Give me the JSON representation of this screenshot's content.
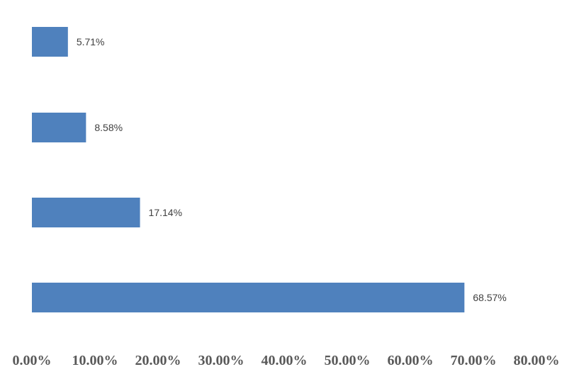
{
  "chart_data": {
    "type": "bar",
    "orientation": "horizontal",
    "categories": [
      "",
      "",
      "",
      ""
    ],
    "values": [
      5.71,
      8.58,
      17.14,
      68.57
    ],
    "data_labels": [
      "5.71%",
      "8.58%",
      "17.14%",
      "68.57%"
    ],
    "x_ticks": [
      "0.00%",
      "10.00%",
      "20.00%",
      "30.00%",
      "40.00%",
      "50.00%",
      "60.00%",
      "70.00%",
      "80.00%"
    ],
    "xlim": [
      0,
      80
    ],
    "unit": "%",
    "bar_color": "#4f81bd",
    "grid": false,
    "legend": "none"
  }
}
